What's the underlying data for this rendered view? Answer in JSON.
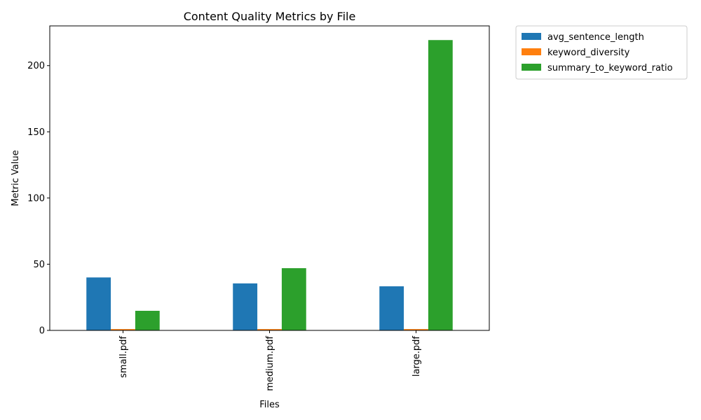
{
  "chart_data": {
    "type": "bar",
    "title": "Content Quality Metrics by File",
    "xlabel": "Files",
    "ylabel": "Metric Value",
    "categories": [
      "small.pdf",
      "medium.pdf",
      "large.pdf"
    ],
    "series": [
      {
        "name": "avg_sentence_length",
        "values": [
          40.0,
          35.5,
          33.3
        ],
        "color": "#1f77b4"
      },
      {
        "name": "keyword_diversity",
        "values": [
          1.0,
          1.0,
          1.0
        ],
        "color": "#ff7f0e"
      },
      {
        "name": "summary_to_keyword_ratio",
        "values": [
          14.8,
          47.0,
          219.3
        ],
        "color": "#2ca02c"
      }
    ],
    "ylim": [
      0,
      230
    ],
    "yticks": [
      0,
      50,
      100,
      150,
      200
    ],
    "grid": false,
    "legend_position": "outside-top-right"
  }
}
